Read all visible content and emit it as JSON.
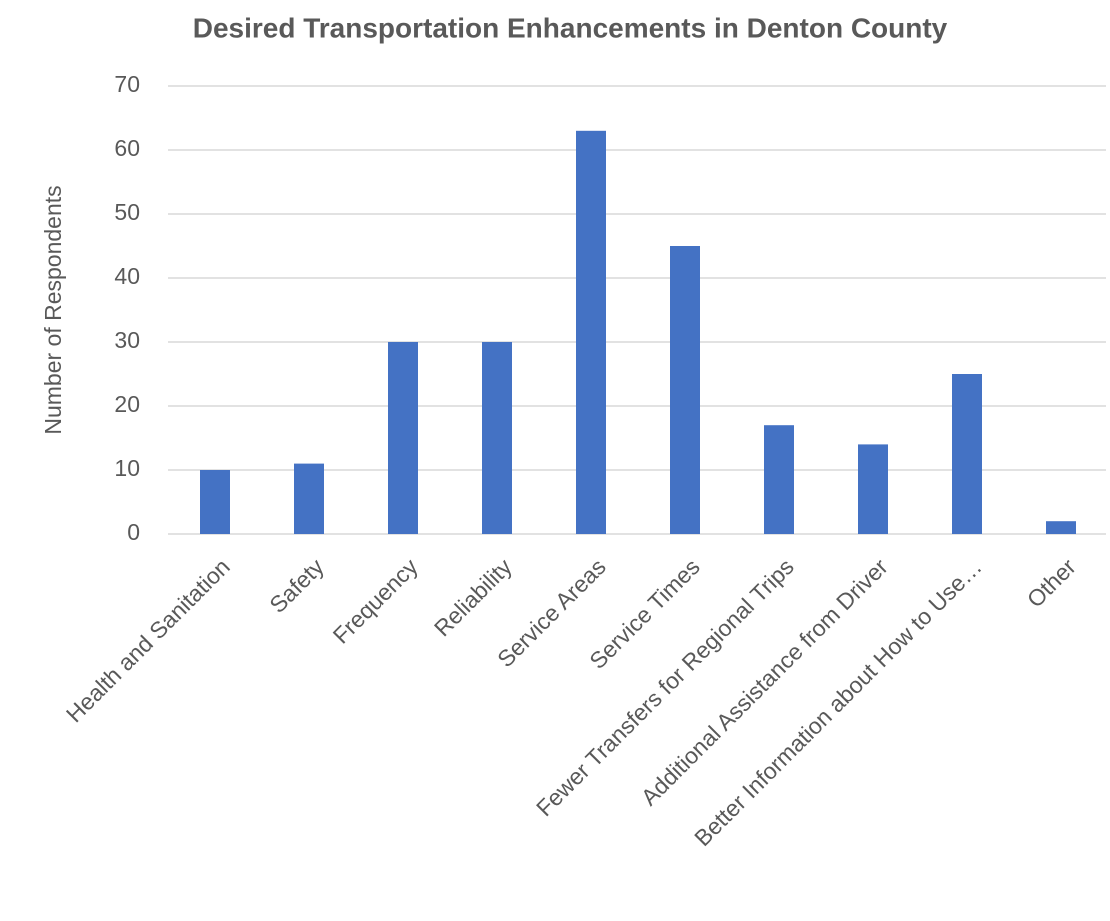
{
  "chart_data": {
    "type": "bar",
    "title": "Desired Transportation Enhancements in Denton County",
    "y_label": "Number of Respondents",
    "categories": [
      "Health and Sanitation",
      "Safety",
      "Frequency",
      "Reliability",
      "Service Areas",
      "Service Times",
      "Fewer Transfers for Regional Trips",
      "Additional Assistance from Driver",
      "Better Information about How to Use…",
      "Other"
    ],
    "values": [
      10,
      11,
      30,
      30,
      63,
      45,
      17,
      14,
      25,
      2
    ],
    "color": "#4472c4",
    "ylim": [
      0,
      70
    ],
    "yticks": [
      0,
      10,
      20,
      30,
      40,
      50,
      60,
      70
    ],
    "grid": true
  }
}
